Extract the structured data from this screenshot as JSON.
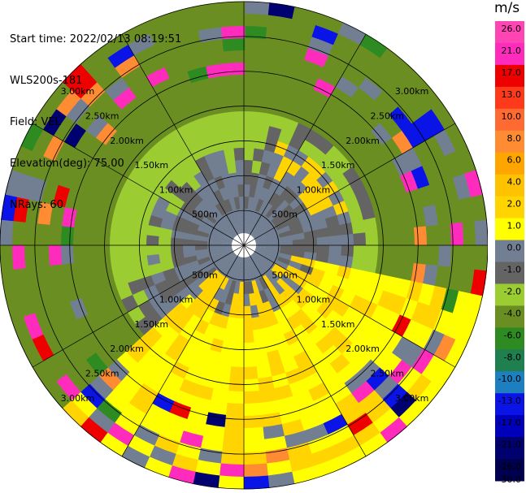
{
  "header": {
    "start_time": "Start time: 2022/02/13 08:19:51",
    "site": "WLS200s-181",
    "field": "Field: VEL",
    "elevation": "Elevation(deg): 75.00",
    "nrays": "NRays: 60"
  },
  "chart_data": {
    "type": "heatmap",
    "projection": "polar-ppi",
    "range_rings_km": [
      0.5,
      1.0,
      1.5,
      2.0,
      2.5,
      3.0
    ],
    "ring_labels": [
      "500m",
      "1.00km",
      "1.50km",
      "2.00km",
      "2.50km",
      "3.00km"
    ],
    "max_range_km": 3.5,
    "n_rays": 60,
    "n_gates": 20,
    "colorbar": {
      "title": "m/s",
      "ticks": [
        "26.0",
        "21.0",
        "17.0",
        "13.0",
        "10.0",
        "8.0",
        "6.0",
        "4.0",
        "2.0",
        "1.0",
        "0.0",
        "-1.0",
        "-2.0",
        "-4.0",
        "-6.0",
        "-8.0",
        "-10.0",
        "-13.0",
        "-17.0",
        "-21.0",
        "-26.0",
        "-30.0"
      ],
      "bins": [
        {
          "lo": 26,
          "color": "#ff44b4"
        },
        {
          "lo": 21,
          "color": "#ff2bbd"
        },
        {
          "lo": 17,
          "color": "#ee0000"
        },
        {
          "lo": 13,
          "color": "#ff3a1a"
        },
        {
          "lo": 10,
          "color": "#ff6a33"
        },
        {
          "lo": 8,
          "color": "#ff8c33"
        },
        {
          "lo": 6,
          "color": "#ffa500"
        },
        {
          "lo": 4,
          "color": "#ffc200"
        },
        {
          "lo": 2,
          "color": "#ffd400"
        },
        {
          "lo": 1,
          "color": "#ffff00"
        },
        {
          "lo": 0,
          "color": "#727f93"
        },
        {
          "lo": -1,
          "color": "#646464"
        },
        {
          "lo": -2,
          "color": "#9bcd32"
        },
        {
          "lo": -4,
          "color": "#6b8e23"
        },
        {
          "lo": -6,
          "color": "#2e8b22"
        },
        {
          "lo": -8,
          "color": "#1f7f4f"
        },
        {
          "lo": -10,
          "color": "#1e7fc0"
        },
        {
          "lo": -13,
          "color": "#0a14e6"
        },
        {
          "lo": -17,
          "color": "#0000bb"
        },
        {
          "lo": -21,
          "color": "#00006e"
        },
        {
          "lo": -26,
          "color": "#000050"
        }
      ],
      "vmin": -30,
      "vmax": 30
    },
    "sector_pattern": {
      "note_codes": "0 white,1 slate(0..1),2 dgray(-1..0),3 lgreen(-2..-1),4 olive(-4..-2),5 yellow(1..2),6 gold(2..4),7 orange,8 red,9 magenta,10 blue,11 navy,12 teal",
      "quadrants": [
        "NW",
        "NE",
        "SE",
        "SW"
      ]
    }
  }
}
